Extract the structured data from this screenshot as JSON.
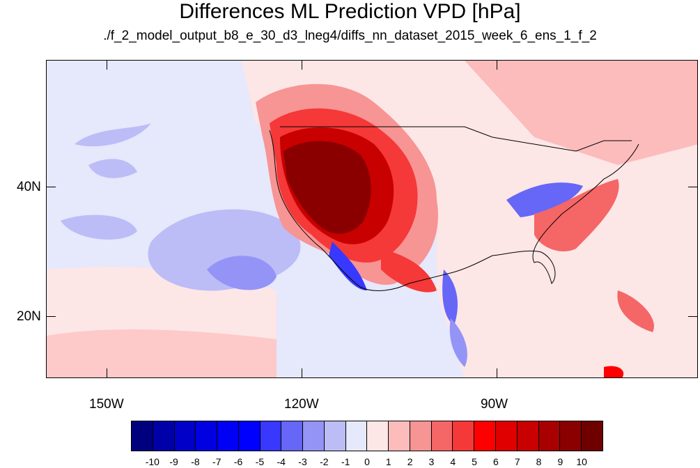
{
  "header": {
    "title": "Differences ML Prediction VPD [hPa]",
    "subtitle": "./f_2_model_output_b8_e_30_d3_lneg4/diffs_nn_dataset_2015_week_6_ens_1_f_2"
  },
  "map": {
    "lat_labels": [
      "40N",
      "20N"
    ],
    "lon_labels": [
      "150W",
      "120W",
      "90W"
    ]
  },
  "colorbar": {
    "labels": [
      "-10",
      "-9",
      "-8",
      "-7",
      "-6",
      "-5",
      "-4",
      "-3",
      "-2",
      "-1",
      "0",
      "1",
      "2",
      "3",
      "4",
      "5",
      "6",
      "7",
      "8",
      "9",
      "10"
    ],
    "colors": [
      "#00007e",
      "#0000a8",
      "#0000c8",
      "#0000e0",
      "#0000f4",
      "#0000ff",
      "#3838ff",
      "#6666f7",
      "#9494f7",
      "#bcbcf7",
      "#e6e8fb",
      "#fde6e6",
      "#fcbcbc",
      "#f79494",
      "#f56666",
      "#f53838",
      "#ff0000",
      "#e00000",
      "#c80000",
      "#a80000",
      "#8a0000",
      "#6e0000"
    ]
  }
}
